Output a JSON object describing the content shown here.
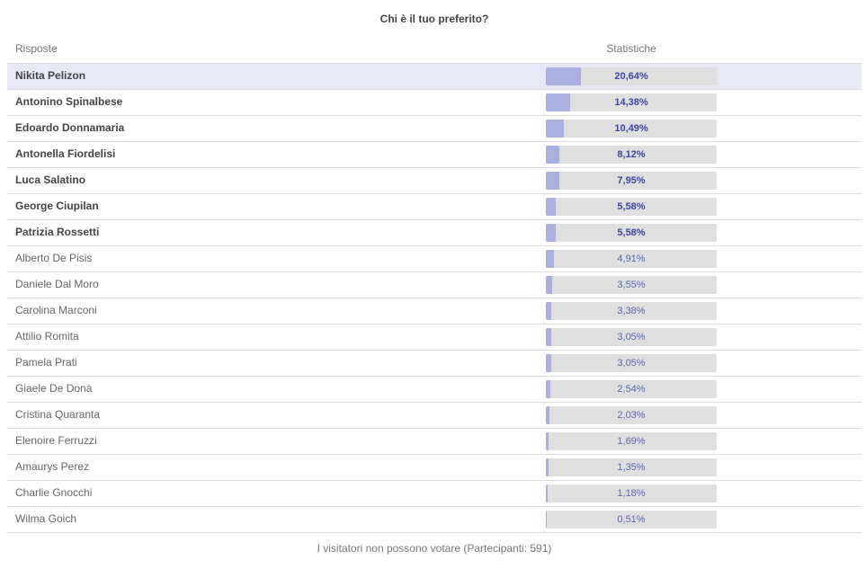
{
  "poll": {
    "title": "Chi è il tuo preferito?",
    "header": {
      "answers": "Risposte",
      "stats": "Statistiche"
    },
    "answers": [
      {
        "name": "Nikita Pelizon",
        "percent_label": "20,64%",
        "percent": 20.64
      },
      {
        "name": "Antonino Spinalbese",
        "percent_label": "14,38%",
        "percent": 14.38
      },
      {
        "name": "Edoardo Donnamaria",
        "percent_label": "10,49%",
        "percent": 10.49
      },
      {
        "name": "Antonella Fiordelisi",
        "percent_label": "8,12%",
        "percent": 8.12
      },
      {
        "name": "Luca Salatino",
        "percent_label": "7,95%",
        "percent": 7.95
      },
      {
        "name": "George Ciupilan",
        "percent_label": "5,58%",
        "percent": 5.58
      },
      {
        "name": "Patrizia Rossetti",
        "percent_label": "5,58%",
        "percent": 5.58
      },
      {
        "name": "Alberto De Pisis",
        "percent_label": "4,91%",
        "percent": 4.91
      },
      {
        "name": "Daniele Dal Moro",
        "percent_label": "3,55%",
        "percent": 3.55
      },
      {
        "name": "Carolina Marconi",
        "percent_label": "3,38%",
        "percent": 3.38
      },
      {
        "name": "Attilio Romita",
        "percent_label": "3,05%",
        "percent": 3.05
      },
      {
        "name": "Pamela Prati",
        "percent_label": "3,05%",
        "percent": 3.05
      },
      {
        "name": "Giaele De Donà",
        "percent_label": "2,54%",
        "percent": 2.54
      },
      {
        "name": "Cristina Quaranta",
        "percent_label": "2,03%",
        "percent": 2.03
      },
      {
        "name": "Elenoire Ferruzzi",
        "percent_label": "1,69%",
        "percent": 1.69
      },
      {
        "name": "Amaurys Perez",
        "percent_label": "1,35%",
        "percent": 1.35
      },
      {
        "name": "Charlie Gnocchi",
        "percent_label": "1,18%",
        "percent": 1.18
      },
      {
        "name": "Wilma Goich",
        "percent_label": "0,51%",
        "percent": 0.51
      }
    ],
    "footer": "I visitatori non possono votare (Partecipanti: 591)",
    "colors": {
      "bar_fill": "#a9b1e0",
      "bar_track": "#dfdfdf",
      "highlight_row": "#e7eaf6",
      "value_text": "#3c46a0"
    }
  }
}
